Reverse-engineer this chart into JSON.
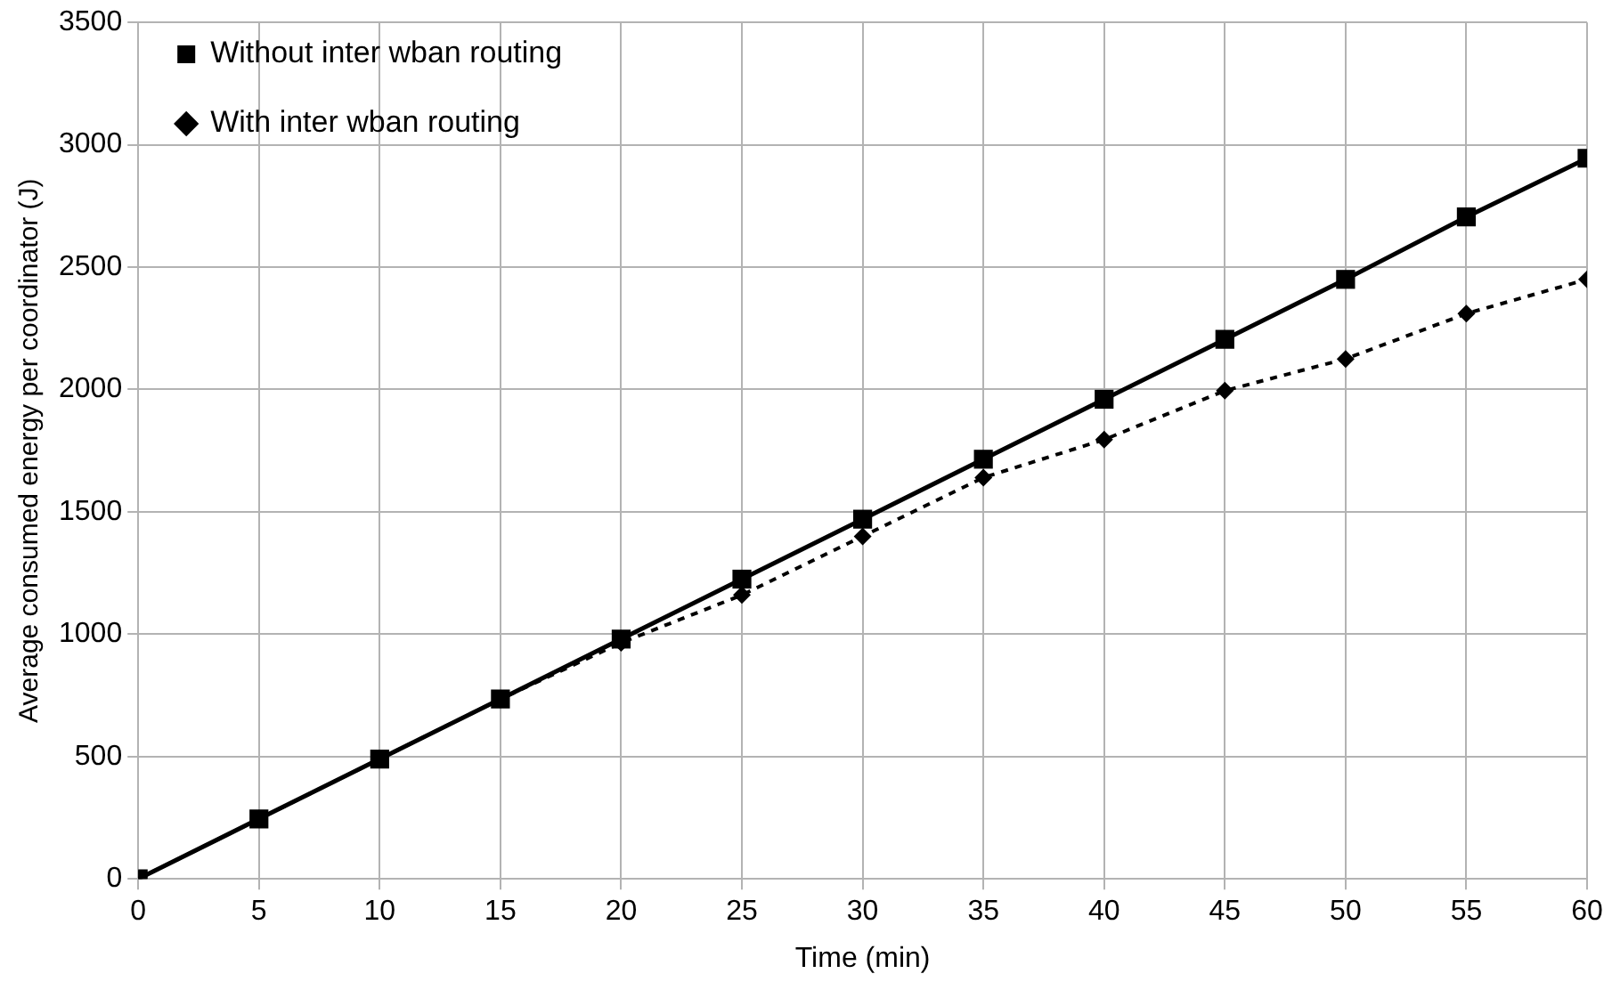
{
  "chart_data": {
    "type": "line",
    "xlabel": "Time (min)",
    "ylabel": "Average consumed energy per coordinator (J)",
    "x": [
      0,
      5,
      10,
      15,
      20,
      25,
      30,
      35,
      40,
      45,
      50,
      55,
      60
    ],
    "series": [
      {
        "name": "Without inter wban routing",
        "color": "#000000",
        "marker": "square",
        "line_style": "solid",
        "values": [
          0,
          245,
          490,
          735,
          980,
          1225,
          1470,
          1715,
          1960,
          2205,
          2450,
          2705,
          2945
        ]
      },
      {
        "name": "With inter wban routing",
        "color": "#000000",
        "marker": "diamond",
        "line_style": "dotted",
        "values": [
          0,
          245,
          490,
          735,
          965,
          1160,
          1400,
          1640,
          1795,
          1995,
          2125,
          2310,
          2450
        ]
      }
    ],
    "xlim": [
      0,
      60
    ],
    "xticks": [
      0,
      5,
      10,
      15,
      20,
      25,
      30,
      35,
      40,
      45,
      50,
      55,
      60
    ],
    "ylim": [
      0,
      3500
    ],
    "yticks": [
      0,
      500,
      1000,
      1500,
      2000,
      2500,
      3000,
      3500
    ],
    "grid": true,
    "legend": "top left"
  }
}
